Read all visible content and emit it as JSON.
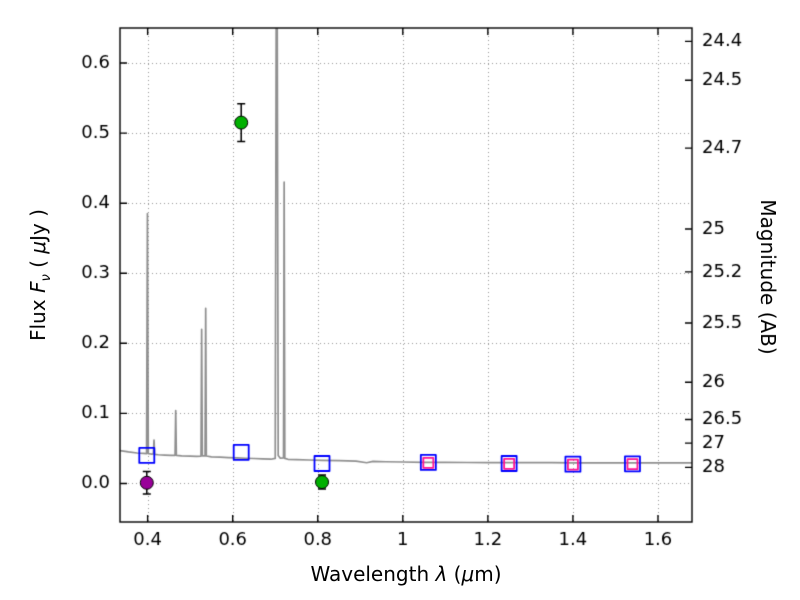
{
  "chart_data": {
    "type": "line",
    "title": "",
    "xlabel": {
      "prefix": "Wavelength  ",
      "lambda": "λ",
      "mid": " (",
      "mu": "μ",
      "suffix": "m)"
    },
    "ylabel_left": {
      "pre": "Flux  ",
      "f": "F",
      "nu": "ν",
      "mid": "  ( ",
      "mu": "μ",
      "suf": "Jy )"
    },
    "ylabel_right": "Magnitude (AB)",
    "xlim": [
      0.335,
      1.68
    ],
    "ylim": [
      -0.055,
      0.65
    ],
    "x_ticks": [
      0.4,
      0.6,
      0.8,
      1.0,
      1.2,
      1.4,
      1.6
    ],
    "x_tick_labels": [
      "0.4",
      "0.6",
      "0.8",
      "1",
      "1.2",
      "1.4",
      "1.6"
    ],
    "y_ticks": [
      0.0,
      0.1,
      0.2,
      0.3,
      0.4,
      0.5,
      0.6
    ],
    "y_tick_labels": [
      "0.0",
      "0.1",
      "0.2",
      "0.3",
      "0.4",
      "0.5",
      "0.6"
    ],
    "mag_ticks": [
      24.4,
      24.5,
      24.7,
      25,
      25.2,
      25.5,
      26,
      26.5,
      27,
      28
    ],
    "mag_tick_labels": [
      "24.4",
      "24.5",
      "24.7",
      "25",
      "25.2",
      "25.5",
      "26",
      "26.5",
      "27",
      "28"
    ],
    "mag_zeropoint_ab": 23.9,
    "grid": true,
    "grid_style": "dotted",
    "colors": {
      "background": "#ffffff",
      "spectrum": "#909090",
      "grid": "#999999",
      "frame": "#000000",
      "model_squares": "#0000ff",
      "obs_squares": "#ff1493",
      "obs_circles_green": "#00b000",
      "obs_circle_purple": "#990099",
      "errorbar": "#000000"
    },
    "spectrum": {
      "name": "model-spectrum",
      "points": [
        [
          0.335,
          0.047
        ],
        [
          0.355,
          0.045
        ],
        [
          0.375,
          0.0435
        ],
        [
          0.39,
          0.0428
        ],
        [
          0.3975,
          0.0425
        ],
        [
          0.3995,
          0.385
        ],
        [
          0.4015,
          0.0425
        ],
        [
          0.408,
          0.042
        ],
        [
          0.4135,
          0.0422
        ],
        [
          0.415,
          0.062
        ],
        [
          0.4165,
          0.0415
        ],
        [
          0.425,
          0.041
        ],
        [
          0.44,
          0.0405
        ],
        [
          0.455,
          0.04
        ],
        [
          0.4645,
          0.0402
        ],
        [
          0.466,
          0.104
        ],
        [
          0.4675,
          0.04
        ],
        [
          0.48,
          0.0395
        ],
        [
          0.5,
          0.039
        ],
        [
          0.515,
          0.0386
        ],
        [
          0.5255,
          0.039
        ],
        [
          0.527,
          0.22
        ],
        [
          0.5285,
          0.0395
        ],
        [
          0.535,
          0.0393
        ],
        [
          0.5365,
          0.25
        ],
        [
          0.538,
          0.0392
        ],
        [
          0.55,
          0.038
        ],
        [
          0.57,
          0.0376
        ],
        [
          0.59,
          0.037
        ],
        [
          0.61,
          0.0366
        ],
        [
          0.63,
          0.036
        ],
        [
          0.65,
          0.0356
        ],
        [
          0.67,
          0.035
        ],
        [
          0.69,
          0.0346
        ],
        [
          0.7,
          0.0358
        ],
        [
          0.7035,
          1.0
        ],
        [
          0.707,
          0.04
        ],
        [
          0.712,
          0.036
        ],
        [
          0.7195,
          0.0364
        ],
        [
          0.721,
          0.43
        ],
        [
          0.7225,
          0.0358
        ],
        [
          0.73,
          0.0345
        ],
        [
          0.75,
          0.034
        ],
        [
          0.78,
          0.0335
        ],
        [
          0.81,
          0.033
        ],
        [
          0.85,
          0.0325
        ],
        [
          0.89,
          0.032
        ],
        [
          0.915,
          0.0296
        ],
        [
          0.93,
          0.0315
        ],
        [
          0.96,
          0.031
        ],
        [
          1.0,
          0.0306
        ],
        [
          1.05,
          0.0302
        ],
        [
          1.1,
          0.03
        ],
        [
          1.15,
          0.0299
        ],
        [
          1.2,
          0.0298
        ],
        [
          1.25,
          0.0297
        ],
        [
          1.3,
          0.0296
        ],
        [
          1.35,
          0.0296
        ],
        [
          1.4,
          0.0295
        ],
        [
          1.45,
          0.0295
        ],
        [
          1.5,
          0.0294
        ],
        [
          1.55,
          0.0294
        ],
        [
          1.6,
          0.0293
        ],
        [
          1.65,
          0.0293
        ],
        [
          1.68,
          0.0293
        ]
      ]
    },
    "photometry": [
      {
        "name": "model-photometry-squares",
        "marker": "open-square",
        "color": "#0000ff",
        "size": 15,
        "points": [
          [
            0.398,
            0.04
          ],
          [
            0.62,
            0.0445
          ],
          [
            0.81,
            0.0285
          ],
          [
            1.06,
            0.03
          ],
          [
            1.25,
            0.0285
          ],
          [
            1.4,
            0.0275
          ],
          [
            1.54,
            0.028
          ]
        ]
      },
      {
        "name": "observed-ir-photometry-squares",
        "marker": "open-square",
        "color": "#ff1493",
        "size": 10,
        "points": [
          [
            1.06,
            0.0295
          ],
          [
            1.25,
            0.028
          ],
          [
            1.4,
            0.027
          ],
          [
            1.54,
            0.0275
          ]
        ]
      },
      {
        "name": "observed-photometry-green-circles",
        "marker": "filled-circle",
        "color": "#00b000",
        "size": 13,
        "points": [
          [
            0.62,
            0.515,
            0.027
          ],
          [
            0.81,
            0.002,
            0.01
          ]
        ]
      },
      {
        "name": "observed-photometry-purple-circle",
        "marker": "filled-circle",
        "color": "#990099",
        "size": 13,
        "points": [
          [
            0.398,
            0.001,
            0.016
          ]
        ]
      }
    ]
  }
}
